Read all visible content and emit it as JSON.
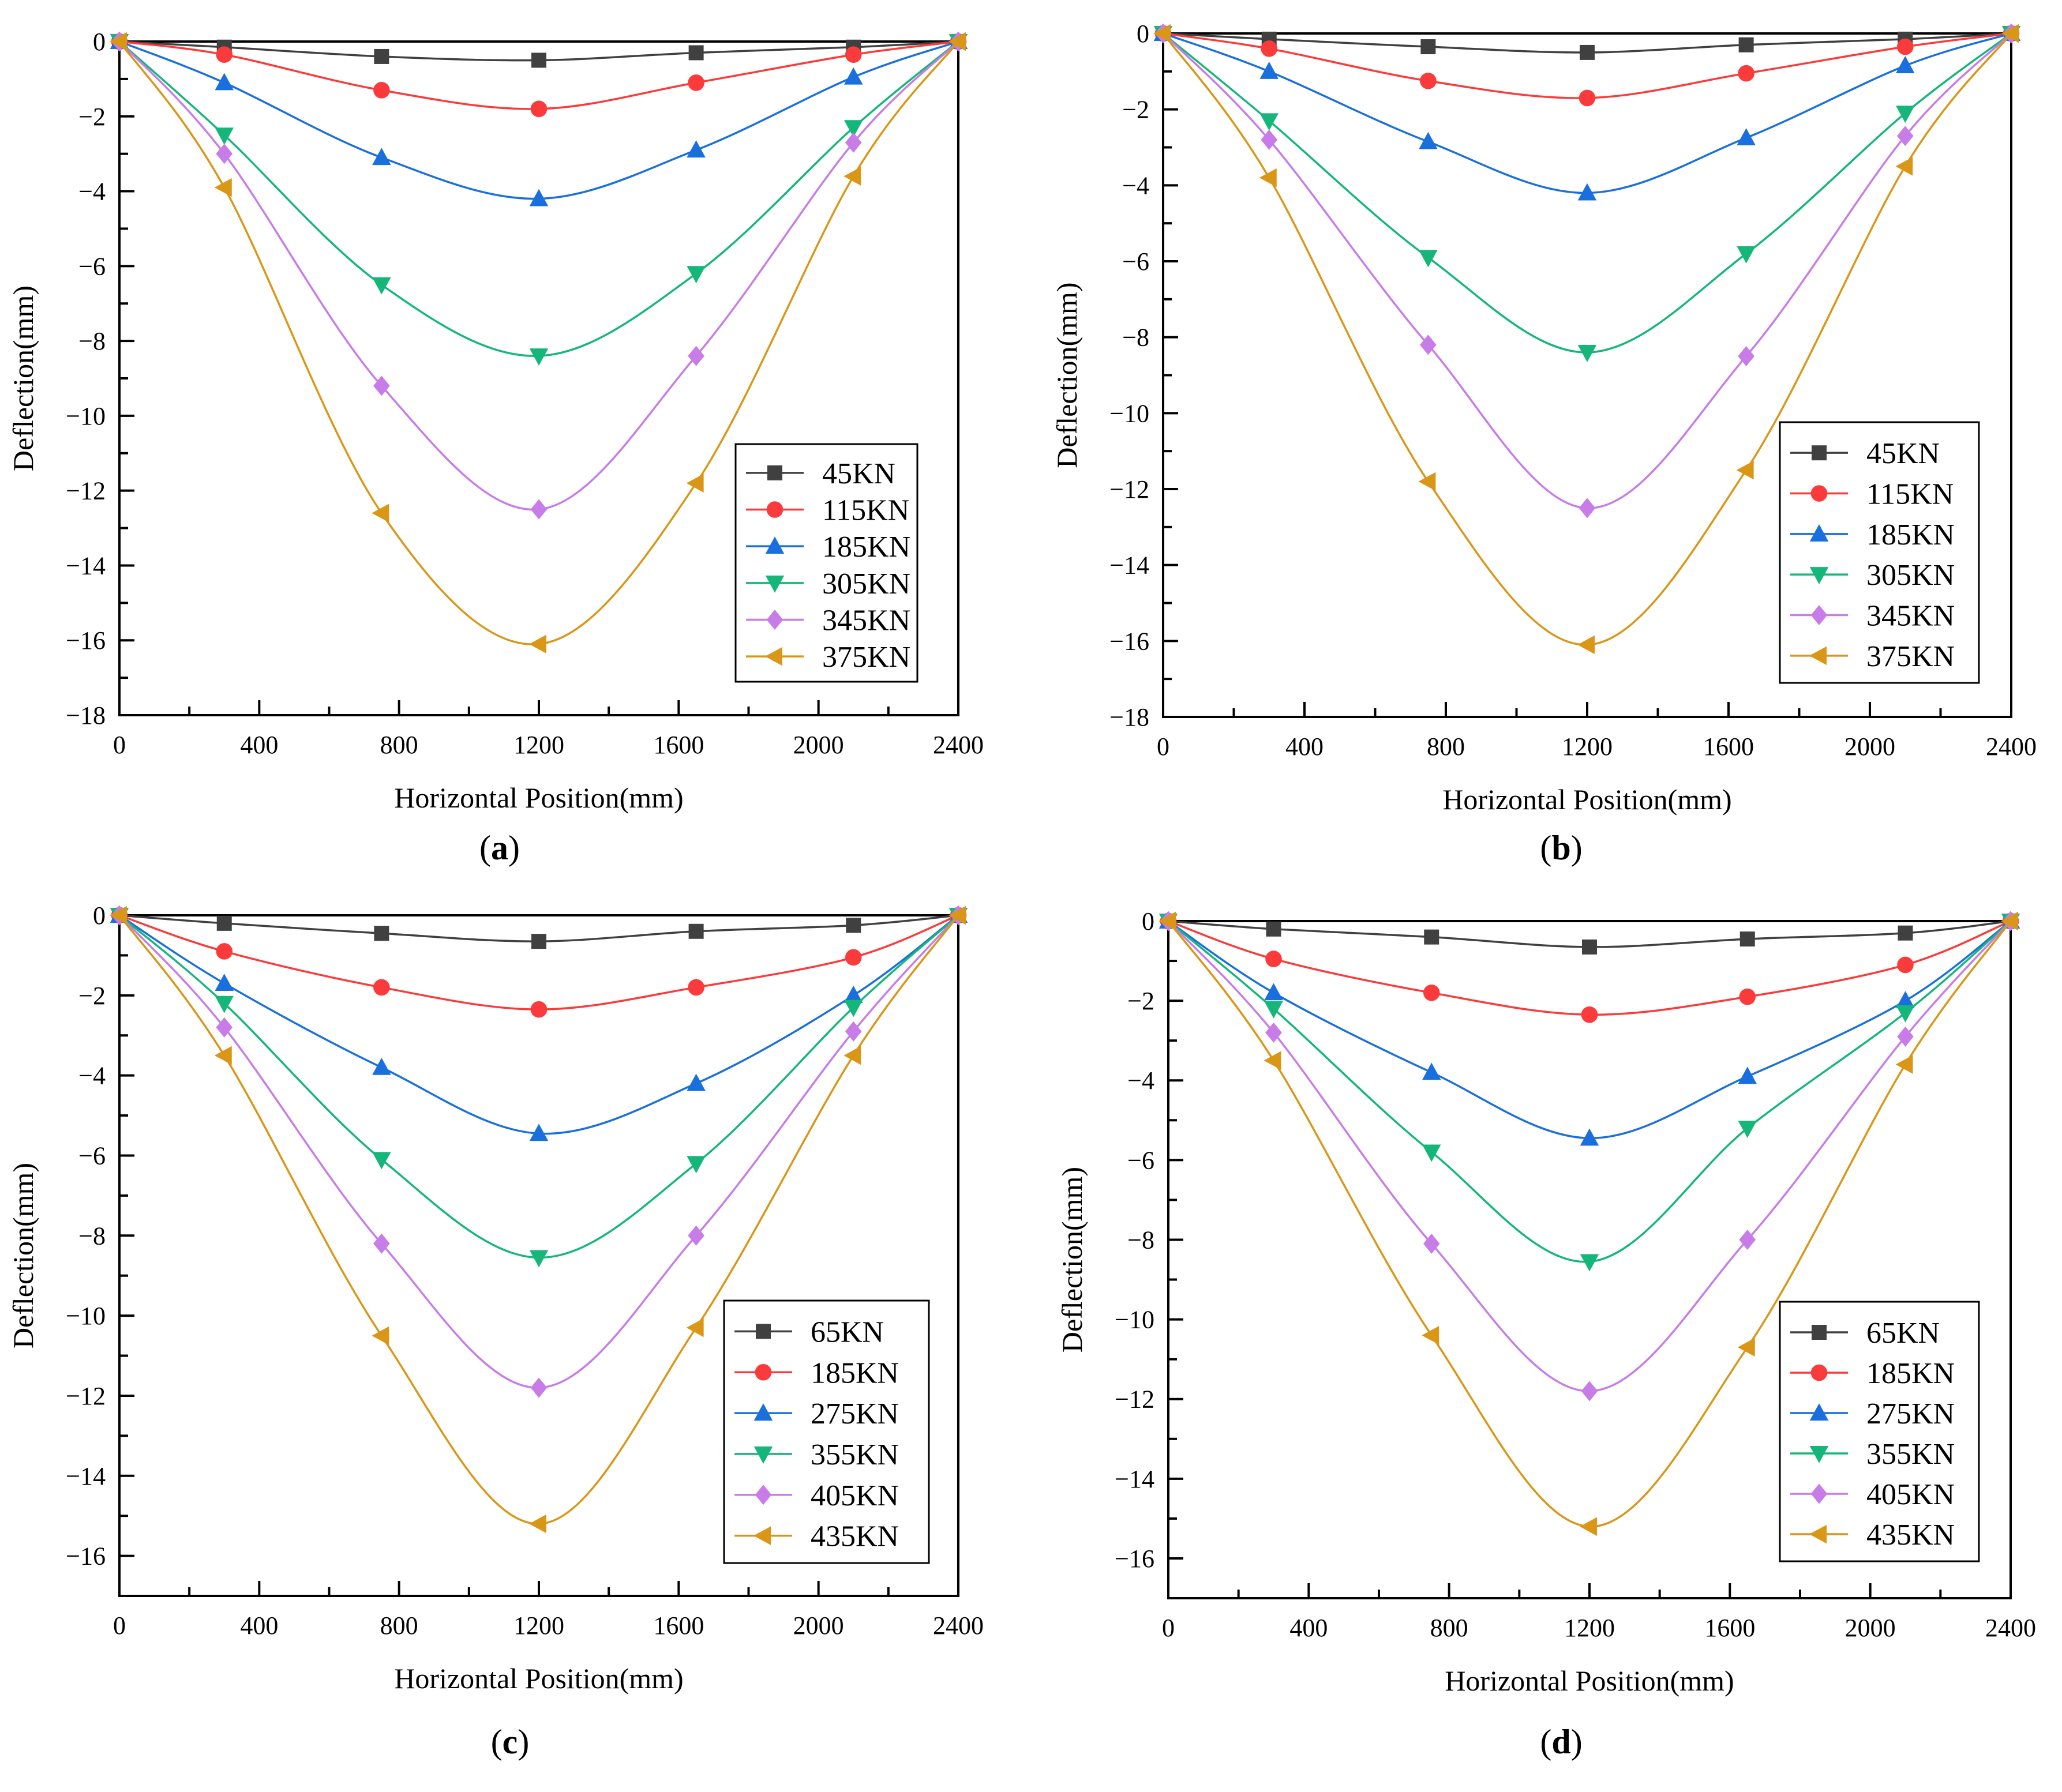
{
  "figure": {
    "panel_labels": [
      "(a)",
      "(b)",
      "(c)",
      "(d)"
    ]
  },
  "chart_data": [
    {
      "panel": "a",
      "label_letter": "a",
      "type": "line",
      "xlabel": "Horizontal Position(mm)",
      "ylabel": "Deflection(mm)",
      "xlim": [
        0,
        2400
      ],
      "ylim": [
        -18,
        0
      ],
      "xticks": [
        0,
        400,
        800,
        1200,
        1600,
        2000,
        2400
      ],
      "yticks": [
        0,
        -2,
        -4,
        -6,
        -8,
        -10,
        -12,
        -14,
        -16,
        -18
      ],
      "x": [
        0,
        300,
        750,
        1200,
        1650,
        2100,
        2400
      ],
      "legend_position": "bottom-right",
      "series": [
        {
          "name": "45KN",
          "color": "#404040",
          "marker": "square",
          "values": [
            0,
            -0.15,
            -0.4,
            -0.5,
            -0.3,
            -0.15,
            0
          ]
        },
        {
          "name": "115KN",
          "color": "#fb3b3b",
          "marker": "circle",
          "values": [
            0,
            -0.35,
            -1.3,
            -1.8,
            -1.1,
            -0.35,
            0
          ]
        },
        {
          "name": "185KN",
          "color": "#1a6fdf",
          "marker": "triangle-up",
          "values": [
            0,
            -1.1,
            -3.1,
            -4.2,
            -2.9,
            -0.95,
            0
          ]
        },
        {
          "name": "305KN",
          "color": "#14b779",
          "marker": "triangle-down",
          "values": [
            0,
            -2.5,
            -6.5,
            -8.4,
            -6.2,
            -2.3,
            0
          ]
        },
        {
          "name": "345KN",
          "color": "#c77ce8",
          "marker": "diamond",
          "values": [
            0,
            -3.0,
            -9.2,
            -12.5,
            -8.4,
            -2.7,
            0
          ]
        },
        {
          "name": "375KN",
          "color": "#da9616",
          "marker": "triangle-left",
          "values": [
            0,
            -3.9,
            -12.6,
            -16.1,
            -11.8,
            -3.6,
            0
          ]
        }
      ]
    },
    {
      "panel": "b",
      "label_letter": "b",
      "type": "line",
      "xlabel": "Horizontal Position(mm)",
      "ylabel": "Deflection(mm)",
      "xlim": [
        0,
        2400
      ],
      "ylim": [
        -18,
        0
      ],
      "xticks": [
        0,
        400,
        800,
        1200,
        1600,
        2000,
        2400
      ],
      "yticks": [
        0,
        -2,
        -4,
        -6,
        -8,
        -10,
        -12,
        -14,
        -16,
        -18
      ],
      "x": [
        0,
        300,
        750,
        1200,
        1650,
        2100,
        2400
      ],
      "legend_position": "bottom-right",
      "series": [
        {
          "name": "45KN",
          "color": "#404040",
          "marker": "square",
          "values": [
            0,
            -0.15,
            -0.35,
            -0.5,
            -0.3,
            -0.15,
            0
          ]
        },
        {
          "name": "115KN",
          "color": "#fb3b3b",
          "marker": "circle",
          "values": [
            0,
            -0.4,
            -1.25,
            -1.7,
            -1.05,
            -0.35,
            0
          ]
        },
        {
          "name": "185KN",
          "color": "#1a6fdf",
          "marker": "triangle-up",
          "values": [
            0,
            -1.0,
            -2.85,
            -4.2,
            -2.75,
            -0.85,
            0
          ]
        },
        {
          "name": "305KN",
          "color": "#14b779",
          "marker": "triangle-down",
          "values": [
            0,
            -2.3,
            -5.9,
            -8.4,
            -5.8,
            -2.1,
            0
          ]
        },
        {
          "name": "345KN",
          "color": "#c77ce8",
          "marker": "diamond",
          "values": [
            0,
            -2.8,
            -8.2,
            -12.5,
            -8.5,
            -2.7,
            0
          ]
        },
        {
          "name": "375KN",
          "color": "#da9616",
          "marker": "triangle-left",
          "values": [
            0,
            -3.8,
            -11.8,
            -16.1,
            -11.5,
            -3.5,
            0
          ]
        }
      ]
    },
    {
      "panel": "c",
      "label_letter": "c",
      "type": "line",
      "xlabel": "Horizontal Position(mm)",
      "ylabel": "Deflection(mm)",
      "xlim": [
        0,
        2400
      ],
      "ylim": [
        -17,
        0
      ],
      "xticks": [
        0,
        400,
        800,
        1200,
        1600,
        2000,
        2400
      ],
      "yticks": [
        0,
        -2,
        -4,
        -6,
        -8,
        -10,
        -12,
        -14,
        -16
      ],
      "x": [
        0,
        300,
        750,
        1200,
        1650,
        2100,
        2400
      ],
      "legend_position": "bottom-right",
      "series": [
        {
          "name": "65KN",
          "color": "#404040",
          "marker": "square",
          "values": [
            0,
            -0.2,
            -0.45,
            -0.65,
            -0.4,
            -0.25,
            0
          ]
        },
        {
          "name": "185KN",
          "color": "#fb3b3b",
          "marker": "circle",
          "values": [
            0,
            -0.9,
            -1.8,
            -2.35,
            -1.8,
            -1.05,
            0
          ]
        },
        {
          "name": "275KN",
          "color": "#1a6fdf",
          "marker": "triangle-up",
          "values": [
            0,
            -1.7,
            -3.8,
            -5.45,
            -4.2,
            -2.0,
            0
          ]
        },
        {
          "name": "355KN",
          "color": "#14b779",
          "marker": "triangle-down",
          "values": [
            0,
            -2.2,
            -6.1,
            -8.55,
            -6.2,
            -2.3,
            0
          ]
        },
        {
          "name": "405KN",
          "color": "#c77ce8",
          "marker": "diamond",
          "values": [
            0,
            -2.8,
            -8.2,
            -11.8,
            -8.0,
            -2.9,
            0
          ]
        },
        {
          "name": "435KN",
          "color": "#da9616",
          "marker": "triangle-left",
          "values": [
            0,
            -3.5,
            -10.5,
            -15.2,
            -10.3,
            -3.5,
            0
          ]
        }
      ]
    },
    {
      "panel": "d",
      "label_letter": "d",
      "type": "line",
      "xlabel": "Horizontal Position(mm)",
      "ylabel": "Deflection(mm)",
      "xlim": [
        0,
        2400
      ],
      "ylim": [
        -17,
        0
      ],
      "xticks": [
        0,
        400,
        800,
        1200,
        1600,
        2000,
        2400
      ],
      "yticks": [
        0,
        -2,
        -4,
        -6,
        -8,
        -10,
        -12,
        -14,
        -16
      ],
      "x": [
        0,
        300,
        750,
        1200,
        1650,
        2100,
        2400
      ],
      "legend_position": "bottom-right",
      "series": [
        {
          "name": "65KN",
          "color": "#404040",
          "marker": "square",
          "values": [
            0,
            -0.2,
            -0.4,
            -0.65,
            -0.45,
            -0.3,
            0
          ]
        },
        {
          "name": "185KN",
          "color": "#fb3b3b",
          "marker": "circle",
          "values": [
            0,
            -0.95,
            -1.8,
            -2.35,
            -1.9,
            -1.1,
            0
          ]
        },
        {
          "name": "275KN",
          "color": "#1a6fdf",
          "marker": "triangle-up",
          "values": [
            0,
            -1.8,
            -3.8,
            -5.45,
            -3.9,
            -2.0,
            0
          ]
        },
        {
          "name": "355KN",
          "color": "#14b779",
          "marker": "triangle-down",
          "values": [
            0,
            -2.2,
            -5.8,
            -8.55,
            -5.2,
            -2.3,
            0
          ]
        },
        {
          "name": "405KN",
          "color": "#c77ce8",
          "marker": "diamond",
          "values": [
            0,
            -2.8,
            -8.1,
            -11.8,
            -8.0,
            -2.9,
            0
          ]
        },
        {
          "name": "435KN",
          "color": "#da9616",
          "marker": "triangle-left",
          "values": [
            0,
            -3.5,
            -10.4,
            -15.2,
            -10.7,
            -3.6,
            0
          ]
        }
      ]
    }
  ]
}
